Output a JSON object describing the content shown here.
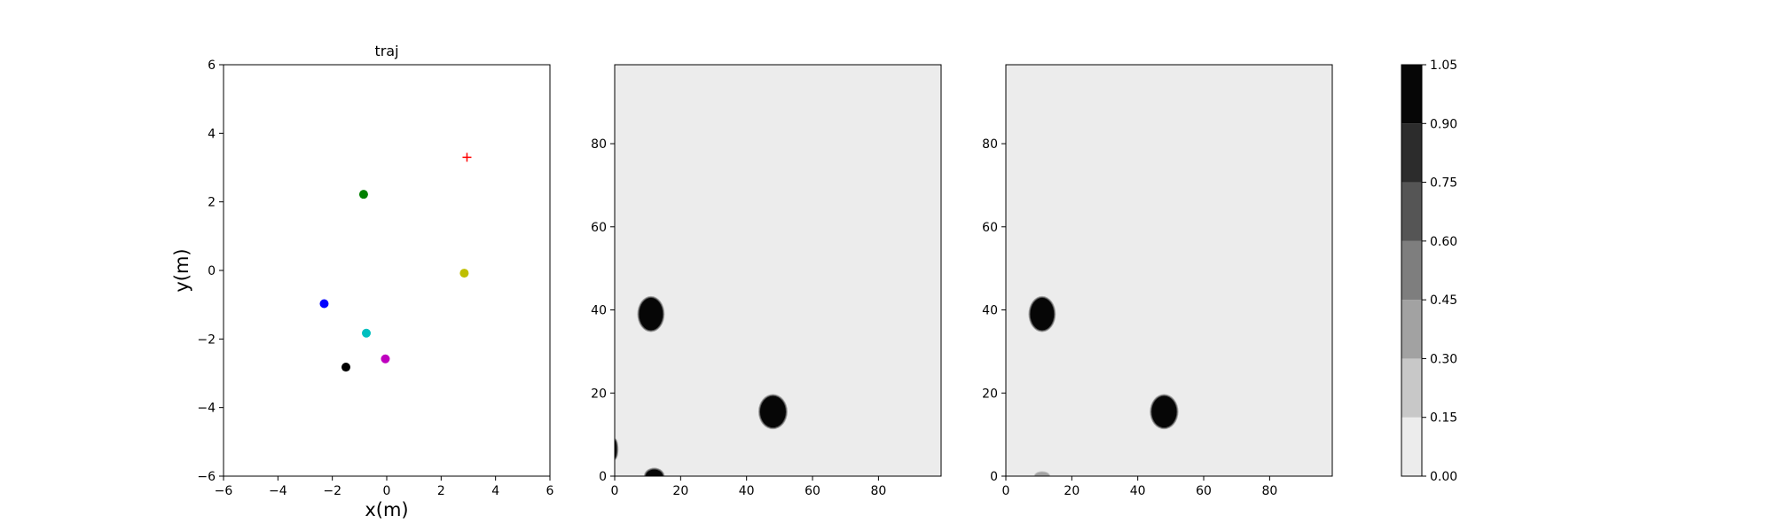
{
  "chart_data": [
    {
      "type": "scatter",
      "title": "traj",
      "xlabel": "x(m)",
      "ylabel": "y(m)",
      "xlim": [
        -6,
        6
      ],
      "ylim": [
        -6,
        6
      ],
      "xticks": [
        "−6",
        "−4",
        "−2",
        "0",
        "2",
        "4",
        "6"
      ],
      "yticks": [
        "−6",
        "−4",
        "−2",
        "0",
        "2",
        "4",
        "6"
      ],
      "grid": false,
      "points": [
        {
          "x": -0.85,
          "y": 2.22,
          "color": "#008000",
          "marker": "circle"
        },
        {
          "x": 2.85,
          "y": -0.08,
          "color": "#bfbf00",
          "marker": "circle"
        },
        {
          "x": -2.3,
          "y": -0.97,
          "color": "#0000ff",
          "marker": "circle"
        },
        {
          "x": -0.75,
          "y": -1.83,
          "color": "#00bfbf",
          "marker": "circle"
        },
        {
          "x": -0.05,
          "y": -2.58,
          "color": "#bf00bf",
          "marker": "circle"
        },
        {
          "x": -1.5,
          "y": -2.82,
          "color": "#000000",
          "marker": "circle"
        },
        {
          "x": 2.95,
          "y": 3.3,
          "color": "#ff0000",
          "marker": "plus"
        }
      ]
    },
    {
      "type": "heatmap",
      "title": "",
      "xlim": [
        0,
        99
      ],
      "ylim": [
        0,
        99
      ],
      "xticks": [
        "0",
        "20",
        "40",
        "60",
        "80"
      ],
      "yticks": [
        "0",
        "20",
        "40",
        "60",
        "80"
      ],
      "background_value": 0.0,
      "blobs": [
        {
          "cx": 11,
          "cy": 39,
          "rx": 3.6,
          "ry": 3.9,
          "value": 1.0
        },
        {
          "cx": 48,
          "cy": 15.5,
          "rx": 3.9,
          "ry": 3.8,
          "value": 1.0
        },
        {
          "cx": 12,
          "cy": 0,
          "rx": 2.6,
          "ry": 1.6,
          "value": 1.0
        },
        {
          "cx": 0,
          "cy": 6.5,
          "rx": 0.6,
          "ry": 2.2,
          "value": 1.0
        }
      ]
    },
    {
      "type": "heatmap",
      "title": "",
      "xlim": [
        0,
        99
      ],
      "ylim": [
        0,
        99
      ],
      "xticks": [
        "0",
        "20",
        "40",
        "60",
        "80"
      ],
      "yticks": [
        "0",
        "20",
        "40",
        "60",
        "80"
      ],
      "background_value": 0.0,
      "blobs": [
        {
          "cx": 11,
          "cy": 39,
          "rx": 3.6,
          "ry": 3.9,
          "value": 1.0
        },
        {
          "cx": 48,
          "cy": 15.5,
          "rx": 3.8,
          "ry": 3.8,
          "value": 1.0
        },
        {
          "cx": 11,
          "cy": 0,
          "rx": 2.2,
          "ry": 1.0,
          "value": 0.3
        }
      ]
    }
  ],
  "colorbar": {
    "ticks": [
      "0.00",
      "0.15",
      "0.30",
      "0.45",
      "0.60",
      "0.75",
      "0.90",
      "1.05"
    ],
    "levels": [
      {
        "from": 0.0,
        "to": 0.15,
        "color": "#ececec"
      },
      {
        "from": 0.15,
        "to": 0.3,
        "color": "#c8c8c8"
      },
      {
        "from": 0.3,
        "to": 0.45,
        "color": "#a2a2a2"
      },
      {
        "from": 0.45,
        "to": 0.6,
        "color": "#7e7e7e"
      },
      {
        "from": 0.6,
        "to": 0.75,
        "color": "#555555"
      },
      {
        "from": 0.75,
        "to": 0.9,
        "color": "#2c2c2c"
      },
      {
        "from": 0.9,
        "to": 1.05,
        "color": "#060606"
      }
    ]
  }
}
